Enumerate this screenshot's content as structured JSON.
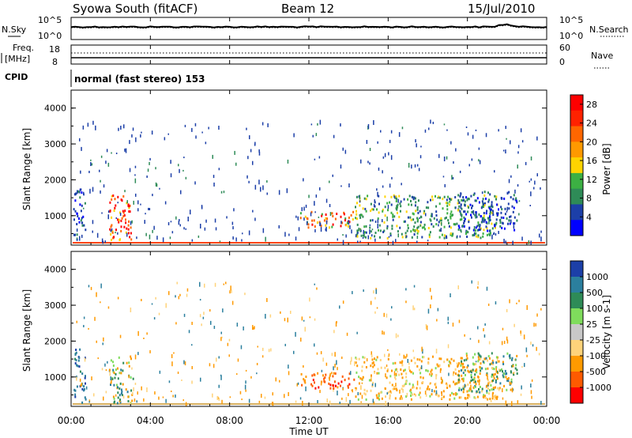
{
  "header": {
    "station": "Syowa South (fitACF)",
    "beam": "Beam 12",
    "date": "15/Jul/2010"
  },
  "left_labels": {
    "nsky": "N.Sky",
    "freq_line1": "Freq.",
    "freq_line2": "[MHz]",
    "cpid": "CPID"
  },
  "right_labels": {
    "nsearch": "N.Search",
    "nave": "Nave"
  },
  "cpid_text": "normal (fast stereo) 153",
  "noise_axis": {
    "left_top": "10^5",
    "left_bottom": "10^0",
    "right_top": "10^5",
    "right_bottom": "10^0"
  },
  "freq_axis": {
    "left_ticks": [
      "18",
      "8"
    ],
    "right_ticks": [
      "60",
      "0"
    ]
  },
  "colors": {
    "power": [
      "#0000ff",
      "#1c3fa8",
      "#2e8b57",
      "#3cb043",
      "#ffd400",
      "#ff9900",
      "#ff6600",
      "#ff2200",
      "#ff0000"
    ],
    "velocity": [
      "#ff0000",
      "#ff5a00",
      "#ff9a00",
      "#ffd37a",
      "#c8c8c8",
      "#7fdc5c",
      "#2e8b57",
      "#2b7f9e",
      "#1c3fa8"
    ]
  },
  "chart_data": [
    {
      "type": "heatmap",
      "title": "Power",
      "ylabel": "Slant Range [km]",
      "ylim": [
        180,
        4500
      ],
      "yticks": [
        "1000",
        "2000",
        "3000",
        "4000"
      ],
      "xlim_hours": [
        0,
        24
      ],
      "colorbar": {
        "label": "Power [dB]",
        "ticks": [
          "4",
          "8",
          "12",
          "16",
          "20",
          "24",
          "28"
        ],
        "range": [
          0,
          30
        ]
      },
      "regions": [
        {
          "t0": 0.1,
          "t1": 0.7,
          "r0": 300,
          "r1": 1800,
          "dominant": "blue/green"
        },
        {
          "t0": 1.9,
          "t1": 3.1,
          "r0": 300,
          "r1": 1600,
          "dominant": "red/orange"
        },
        {
          "t0": 11.5,
          "t1": 14.3,
          "r0": 700,
          "r1": 1150,
          "dominant": "orange/red"
        },
        {
          "t0": 14.3,
          "t1": 21.5,
          "r0": 400,
          "r1": 1600,
          "dominant": "green/blue"
        },
        {
          "t0": 19.5,
          "t1": 22.5,
          "r0": 600,
          "r1": 1700,
          "dominant": "blue"
        }
      ]
    },
    {
      "type": "heatmap",
      "title": "Velocity",
      "ylabel": "Slant Range [km]",
      "xlabel": "Time UT",
      "ylim": [
        180,
        4500
      ],
      "yticks": [
        "1000",
        "2000",
        "3000",
        "4000"
      ],
      "xticks": [
        "00:00",
        "04:00",
        "08:00",
        "12:00",
        "16:00",
        "20:00",
        "00:00"
      ],
      "xlim_hours": [
        0,
        24
      ],
      "colorbar": {
        "label": "Velocity [m s-1]",
        "ticks": [
          "1000",
          "500",
          "100",
          "25",
          "-25",
          "-100",
          "-500",
          "-1000"
        ]
      },
      "regions": [
        {
          "t0": 0.1,
          "t1": 0.7,
          "r0": 300,
          "r1": 1800,
          "dominant": "blue/green"
        },
        {
          "t0": 1.9,
          "t1": 3.1,
          "r0": 300,
          "r1": 1600,
          "dominant": "green/blue"
        },
        {
          "t0": 11.5,
          "t1": 14.3,
          "r0": 700,
          "r1": 1150,
          "dominant": "orange/red"
        },
        {
          "t0": 14.3,
          "t1": 21.5,
          "r0": 400,
          "r1": 1600,
          "dominant": "light orange"
        },
        {
          "t0": 19.5,
          "t1": 22.5,
          "r0": 600,
          "r1": 1700,
          "dominant": "green/blue"
        }
      ]
    }
  ]
}
